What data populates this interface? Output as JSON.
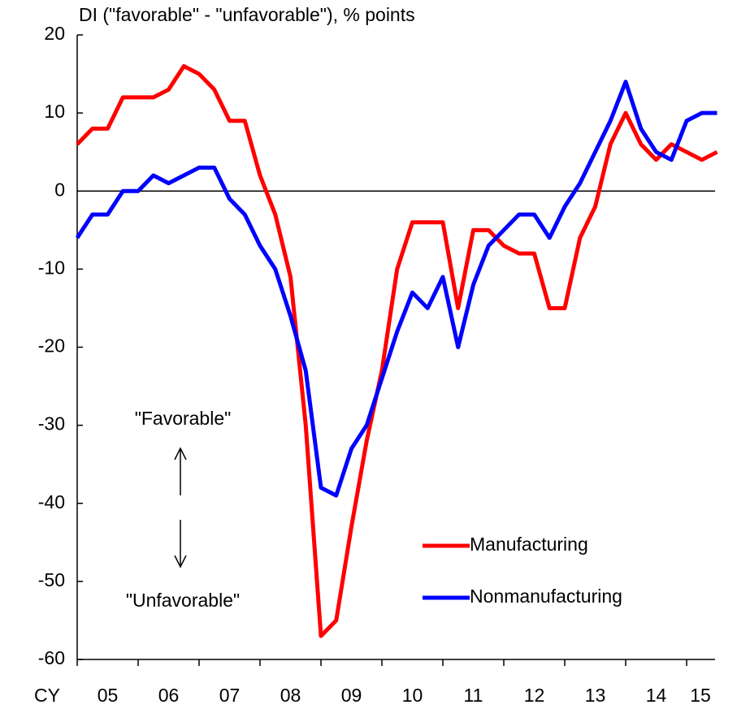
{
  "chart_data": {
    "type": "line",
    "title": "DI (\"favorable\" - \"unfavorable\"), % points",
    "x_label": "CY",
    "categories": [
      null,
      null,
      "05",
      null,
      null,
      null,
      "06",
      null,
      null,
      null,
      "07",
      null,
      null,
      null,
      "08",
      null,
      null,
      null,
      "09",
      null,
      null,
      null,
      "10",
      null,
      null,
      null,
      "11",
      null,
      null,
      null,
      "12",
      null,
      null,
      null,
      "13",
      null,
      null,
      null,
      "14",
      null,
      null,
      null,
      "15"
    ],
    "series": [
      {
        "name": "Manufacturing",
        "color": "#ff0000",
        "values": [
          6,
          8,
          8,
          12,
          12,
          12,
          13,
          16,
          15,
          13,
          9,
          9,
          2,
          -3,
          -11,
          -30,
          -57,
          -55,
          -43,
          -32,
          -23,
          -10,
          -4,
          -4,
          -4,
          -15,
          -5,
          -5,
          -7,
          -8,
          -8,
          -15,
          -15,
          -6,
          -2,
          6,
          10,
          6,
          4,
          6,
          5,
          4,
          5
        ]
      },
      {
        "name": "Nonmanufacturing",
        "color": "#0000ff",
        "values": [
          -6,
          -3,
          -3,
          0,
          0,
          2,
          1,
          2,
          3,
          3,
          -1,
          -3,
          -7,
          -10,
          -16,
          -23,
          -38,
          -39,
          -33,
          -30,
          -24,
          -18,
          -13,
          -15,
          -11,
          -20,
          -12,
          -7,
          -5,
          -3,
          -3,
          -6,
          -2,
          1,
          5,
          9,
          14,
          8,
          5,
          4,
          9,
          10,
          10
        ]
      }
    ],
    "ylim": [
      -60,
      20
    ],
    "yticks": [
      -60,
      -50,
      -40,
      -30,
      -20,
      -10,
      0,
      10,
      20
    ],
    "annotations": [
      "\"Favorable\"",
      "\"Unfavorable\""
    ],
    "legend": "lower-right"
  }
}
